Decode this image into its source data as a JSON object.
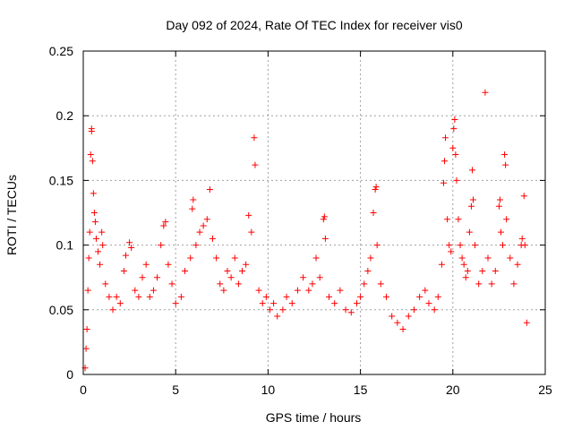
{
  "chart_data": {
    "type": "scatter",
    "title": "Day 092 of 2024, Rate Of TEC Index for receiver vis0",
    "xlabel": "GPS time / hours",
    "ylabel": "ROTI / TECUs",
    "xlim": [
      0,
      25
    ],
    "ylim": [
      0,
      0.25
    ],
    "x_ticks": [
      0,
      5,
      10,
      15,
      20,
      25
    ],
    "x_tick_labels": [
      "0",
      "5",
      "10",
      "15",
      "20",
      "25"
    ],
    "y_ticks": [
      0,
      0.05,
      0.1,
      0.15,
      0.2,
      0.25
    ],
    "y_tick_labels": [
      "0",
      "0.05",
      "0.1",
      "0.15",
      "0.2",
      "0.25"
    ],
    "grid": true,
    "marker": "+",
    "color": "#ff0000",
    "series": [
      {
        "points": [
          [
            0.1,
            0.005
          ],
          [
            0.15,
            0.02
          ],
          [
            0.2,
            0.035
          ],
          [
            0.25,
            0.065
          ],
          [
            0.3,
            0.09
          ],
          [
            0.35,
            0.11
          ],
          [
            0.4,
            0.17
          ],
          [
            0.45,
            0.188
          ],
          [
            0.45,
            0.19
          ],
          [
            0.5,
            0.165
          ],
          [
            0.55,
            0.14
          ],
          [
            0.6,
            0.125
          ],
          [
            0.65,
            0.118
          ],
          [
            0.7,
            0.105
          ],
          [
            0.8,
            0.095
          ],
          [
            0.9,
            0.085
          ],
          [
            1.0,
            0.11
          ],
          [
            1.05,
            0.1
          ],
          [
            1.2,
            0.07
          ],
          [
            1.4,
            0.06
          ],
          [
            1.6,
            0.05
          ],
          [
            1.8,
            0.06
          ],
          [
            2.0,
            0.055
          ],
          [
            2.2,
            0.08
          ],
          [
            2.3,
            0.092
          ],
          [
            2.5,
            0.102
          ],
          [
            2.6,
            0.098
          ],
          [
            2.8,
            0.065
          ],
          [
            3.0,
            0.06
          ],
          [
            3.2,
            0.075
          ],
          [
            3.4,
            0.085
          ],
          [
            3.6,
            0.06
          ],
          [
            3.8,
            0.065
          ],
          [
            4.0,
            0.075
          ],
          [
            4.2,
            0.1
          ],
          [
            4.35,
            0.115
          ],
          [
            4.45,
            0.118
          ],
          [
            4.6,
            0.085
          ],
          [
            4.8,
            0.07
          ],
          [
            5.0,
            0.055
          ],
          [
            5.3,
            0.06
          ],
          [
            5.5,
            0.08
          ],
          [
            5.8,
            0.09
          ],
          [
            5.9,
            0.128
          ],
          [
            5.95,
            0.135
          ],
          [
            6.1,
            0.1
          ],
          [
            6.3,
            0.11
          ],
          [
            6.5,
            0.115
          ],
          [
            6.7,
            0.12
          ],
          [
            6.85,
            0.143
          ],
          [
            7.0,
            0.105
          ],
          [
            7.2,
            0.09
          ],
          [
            7.4,
            0.07
          ],
          [
            7.6,
            0.065
          ],
          [
            7.8,
            0.08
          ],
          [
            8.0,
            0.075
          ],
          [
            8.2,
            0.09
          ],
          [
            8.4,
            0.07
          ],
          [
            8.6,
            0.08
          ],
          [
            8.8,
            0.085
          ],
          [
            8.95,
            0.123
          ],
          [
            9.1,
            0.11
          ],
          [
            9.25,
            0.183
          ],
          [
            9.3,
            0.162
          ],
          [
            9.5,
            0.065
          ],
          [
            9.7,
            0.055
          ],
          [
            9.9,
            0.06
          ],
          [
            10.1,
            0.05
          ],
          [
            10.3,
            0.055
          ],
          [
            10.5,
            0.045
          ],
          [
            10.8,
            0.05
          ],
          [
            11.0,
            0.06
          ],
          [
            11.3,
            0.055
          ],
          [
            11.6,
            0.065
          ],
          [
            11.9,
            0.075
          ],
          [
            12.2,
            0.065
          ],
          [
            12.4,
            0.07
          ],
          [
            12.6,
            0.09
          ],
          [
            12.8,
            0.075
          ],
          [
            13.0,
            0.12
          ],
          [
            13.05,
            0.122
          ],
          [
            13.1,
            0.105
          ],
          [
            13.3,
            0.06
          ],
          [
            13.6,
            0.055
          ],
          [
            13.9,
            0.065
          ],
          [
            14.2,
            0.05
          ],
          [
            14.5,
            0.048
          ],
          [
            14.8,
            0.055
          ],
          [
            15.0,
            0.06
          ],
          [
            15.2,
            0.07
          ],
          [
            15.4,
            0.08
          ],
          [
            15.55,
            0.09
          ],
          [
            15.7,
            0.125
          ],
          [
            15.8,
            0.143
          ],
          [
            15.85,
            0.145
          ],
          [
            15.9,
            0.1
          ],
          [
            16.1,
            0.07
          ],
          [
            16.4,
            0.06
          ],
          [
            16.7,
            0.045
          ],
          [
            17.0,
            0.04
          ],
          [
            17.3,
            0.035
          ],
          [
            17.6,
            0.045
          ],
          [
            17.9,
            0.05
          ],
          [
            18.2,
            0.06
          ],
          [
            18.5,
            0.065
          ],
          [
            18.7,
            0.055
          ],
          [
            19.0,
            0.05
          ],
          [
            19.2,
            0.06
          ],
          [
            19.4,
            0.085
          ],
          [
            19.5,
            0.148
          ],
          [
            19.55,
            0.165
          ],
          [
            19.6,
            0.183
          ],
          [
            19.7,
            0.12
          ],
          [
            19.8,
            0.1
          ],
          [
            19.9,
            0.095
          ],
          [
            20.0,
            0.175
          ],
          [
            20.05,
            0.19
          ],
          [
            20.1,
            0.197
          ],
          [
            20.15,
            0.17
          ],
          [
            20.2,
            0.15
          ],
          [
            20.3,
            0.12
          ],
          [
            20.4,
            0.1
          ],
          [
            20.5,
            0.09
          ],
          [
            20.6,
            0.085
          ],
          [
            20.7,
            0.075
          ],
          [
            20.8,
            0.08
          ],
          [
            20.9,
            0.11
          ],
          [
            21.0,
            0.13
          ],
          [
            21.05,
            0.158
          ],
          [
            21.1,
            0.135
          ],
          [
            21.2,
            0.1
          ],
          [
            21.4,
            0.07
          ],
          [
            21.6,
            0.08
          ],
          [
            21.75,
            0.218
          ],
          [
            21.9,
            0.09
          ],
          [
            22.1,
            0.07
          ],
          [
            22.3,
            0.08
          ],
          [
            22.5,
            0.13
          ],
          [
            22.55,
            0.135
          ],
          [
            22.6,
            0.11
          ],
          [
            22.7,
            0.1
          ],
          [
            22.8,
            0.17
          ],
          [
            22.85,
            0.162
          ],
          [
            22.9,
            0.12
          ],
          [
            23.1,
            0.09
          ],
          [
            23.3,
            0.07
          ],
          [
            23.5,
            0.085
          ],
          [
            23.7,
            0.1
          ],
          [
            23.75,
            0.105
          ],
          [
            23.85,
            0.138
          ],
          [
            23.9,
            0.1
          ],
          [
            24.0,
            0.04
          ]
        ]
      }
    ]
  }
}
